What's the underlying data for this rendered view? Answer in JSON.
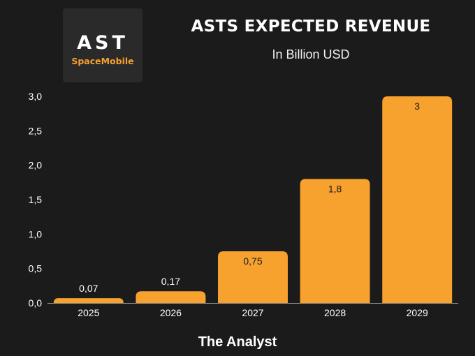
{
  "logo": {
    "main_text": "AST",
    "sub_text": "SpaceMobile"
  },
  "footer": "The Analyst",
  "colors": {
    "bar": "#f7a12f",
    "background": "#1b1b1b",
    "axis": "#9a9a9a"
  },
  "chart_data": {
    "type": "bar",
    "title": "ASTS EXPECTED REVENUE",
    "subtitle": "In Billion USD",
    "xlabel": "",
    "ylabel": "",
    "categories": [
      "2025",
      "2026",
      "2027",
      "2028",
      "2029"
    ],
    "values": [
      0.07,
      0.17,
      0.75,
      1.8,
      3
    ],
    "data_labels": [
      "0,07",
      "0,17",
      "0,75",
      "1,8",
      "3"
    ],
    "ylim": [
      0,
      3
    ],
    "yticks": [
      0,
      0.5,
      1,
      1.5,
      2,
      2.5,
      3
    ],
    "ytick_labels": [
      "0,0",
      "0,5",
      "1,0",
      "1,5",
      "2,0",
      "2,5",
      "3,0"
    ],
    "grid": false,
    "legend": "none"
  }
}
